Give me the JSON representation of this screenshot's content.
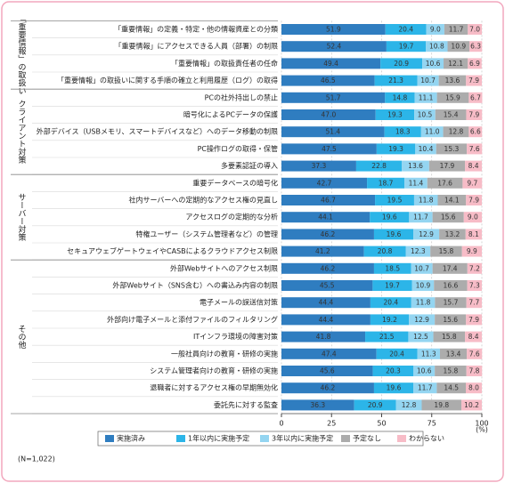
{
  "chart_data": {
    "type": "stacked-barh",
    "categories": [
      "「重要情報」の定義・特定・他の情報資産との分類",
      "「重要情報」にアクセスできる人員（部署）の制限",
      "「重要情報」の取扱責任者の任命",
      "「重要情報」の取扱いに関する手順の確立と利用履歴（ログ）の取得",
      "PCの社外持出しの禁止",
      "暗号化によるPCデータの保護",
      "外部デバイス（USBメモリ、スマートデバイスなど）へのデータ移動の制限",
      "PC操作ログの取得・保管",
      "多要素認証の導入",
      "重要データベースの暗号化",
      "社内サーバーへの定期的なアクセス権の見直し",
      "アクセスログの定期的な分析",
      "特権ユーザー（システム管理者など）の管理",
      "セキュアウェブゲートウェイやCASBによるクラウドアクセス制限",
      "外部Webサイトへのアクセス制限",
      "外部Webサイト（SNS含む）への書込み内容の制限",
      "電子メールの誤送信対策",
      "外部向け電子メールと添付ファイルのフィルタリング",
      "ITインフラ環境の障害対策",
      "一般社員向けの教育・研修の実施",
      "システム管理者向けの教育・研修の実施",
      "退職者に対するアクセス権の早期無効化",
      "委託先に対する監査"
    ],
    "groups": [
      {
        "label": "「重要情報」の取扱い",
        "rows": 4
      },
      {
        "label": "クライアント対策",
        "rows": 5
      },
      {
        "label": "サーバー対策",
        "rows": 5
      },
      {
        "label": "その他",
        "rows": 9
      }
    ],
    "series": [
      {
        "name": "実施済み",
        "color": "#2f7dc0",
        "values": [
          51.9,
          52.4,
          49.4,
          46.5,
          51.7,
          47.0,
          51.4,
          47.5,
          37.3,
          42.7,
          46.7,
          44.1,
          46.2,
          41.2,
          46.2,
          45.5,
          44.4,
          44.4,
          41.8,
          47.4,
          45.6,
          46.2,
          36.3
        ],
        "value_labels": [
          "51.9",
          "52.4",
          "49.4",
          "46.5",
          "51.7",
          "47.0",
          "51.4",
          "47.5",
          "37.3",
          "42.7",
          "46.7",
          "44.1",
          "46.2",
          "41.2",
          "46.2",
          "45.5",
          "44.4",
          "44.4",
          "41.8",
          "47.4",
          "45.6",
          "46.2",
          "36.3"
        ]
      },
      {
        "name": "1年以内に実施予定",
        "color": "#2cb5e8",
        "values": [
          20.4,
          19.7,
          20.9,
          21.3,
          14.8,
          19.3,
          18.3,
          19.3,
          22.8,
          18.7,
          19.5,
          19.6,
          19.6,
          20.8,
          18.5,
          19.7,
          20.4,
          19.2,
          21.5,
          20.4,
          20.3,
          19.6,
          20.9
        ],
        "value_labels": [
          "20.4",
          "19.7",
          "20.9",
          "21.3",
          "14.8",
          "19.3",
          "18.3",
          "19.3",
          "22.8",
          "18.7",
          "19.5",
          "19.6",
          "19.6",
          "20.8",
          "18.5",
          "19.7",
          "20.4",
          "19.2",
          "21.5",
          "20.4",
          "20.3",
          "19.6",
          "20.9"
        ]
      },
      {
        "name": "3年以内に実施予定",
        "color": "#94d5f1",
        "values": [
          9.0,
          10.8,
          10.6,
          10.7,
          11.1,
          10.5,
          11.0,
          10.4,
          13.6,
          11.4,
          11.8,
          11.7,
          12.9,
          12.3,
          10.7,
          10.9,
          11.8,
          12.9,
          12.5,
          11.3,
          10.6,
          11.7,
          12.8
        ],
        "value_labels": [
          "9.0",
          "10.8",
          "10.6",
          "10.7",
          "11.1",
          "10.5",
          "11.0",
          "10.4",
          "13.6",
          "11.4",
          "11.8",
          "11.7",
          "12.9",
          "12.3",
          "10.7",
          "10.9",
          "11.8",
          "12.9",
          "12.5",
          "11.3",
          "10.6",
          "11.7",
          "12.8"
        ]
      },
      {
        "name": "予定なし",
        "color": "#acacac",
        "values": [
          11.7,
          10.9,
          12.1,
          13.6,
          15.9,
          15.4,
          12.8,
          15.3,
          17.9,
          17.6,
          14.1,
          15.6,
          13.2,
          15.8,
          17.4,
          16.6,
          15.7,
          15.6,
          15.8,
          13.4,
          15.8,
          14.5,
          19.8
        ],
        "value_labels": [
          "11.7",
          "10.9",
          "12.1",
          "13.6",
          "15.9",
          "15.4",
          "12.8",
          "15.3",
          "17.9",
          "17.6",
          "14.1",
          "15.6",
          "13.2",
          "15.8",
          "17.4",
          "16.6",
          "15.7",
          "15.6",
          "15.8",
          "13.4",
          "15.8",
          "14.5",
          "19.8"
        ]
      },
      {
        "name": "わからない",
        "color": "#f7bcc7",
        "values": [
          7.0,
          6.3,
          6.9,
          7.9,
          6.7,
          7.9,
          6.6,
          7.6,
          8.4,
          9.7,
          7.9,
          9.0,
          8.1,
          9.9,
          7.2,
          7.3,
          7.7,
          7.9,
          8.4,
          7.6,
          7.8,
          8.0,
          10.2
        ],
        "value_labels": [
          "7.0",
          "6.3",
          "6.9",
          "7.9",
          "6.7",
          "7.9",
          "6.6",
          "7.6",
          "8.4",
          "9.7",
          "7.9",
          "9.0",
          "8.1",
          "9.9",
          "7.2",
          "7.3",
          "7.7",
          "7.9",
          "8.4",
          "7.6",
          "7.8",
          "8.0",
          "10.2"
        ]
      }
    ],
    "xlim": [
      0,
      100
    ],
    "xticks": [
      0,
      25,
      50,
      75,
      100
    ],
    "x_unit": "(%)",
    "grid": true,
    "note": "(N=1,022)"
  }
}
